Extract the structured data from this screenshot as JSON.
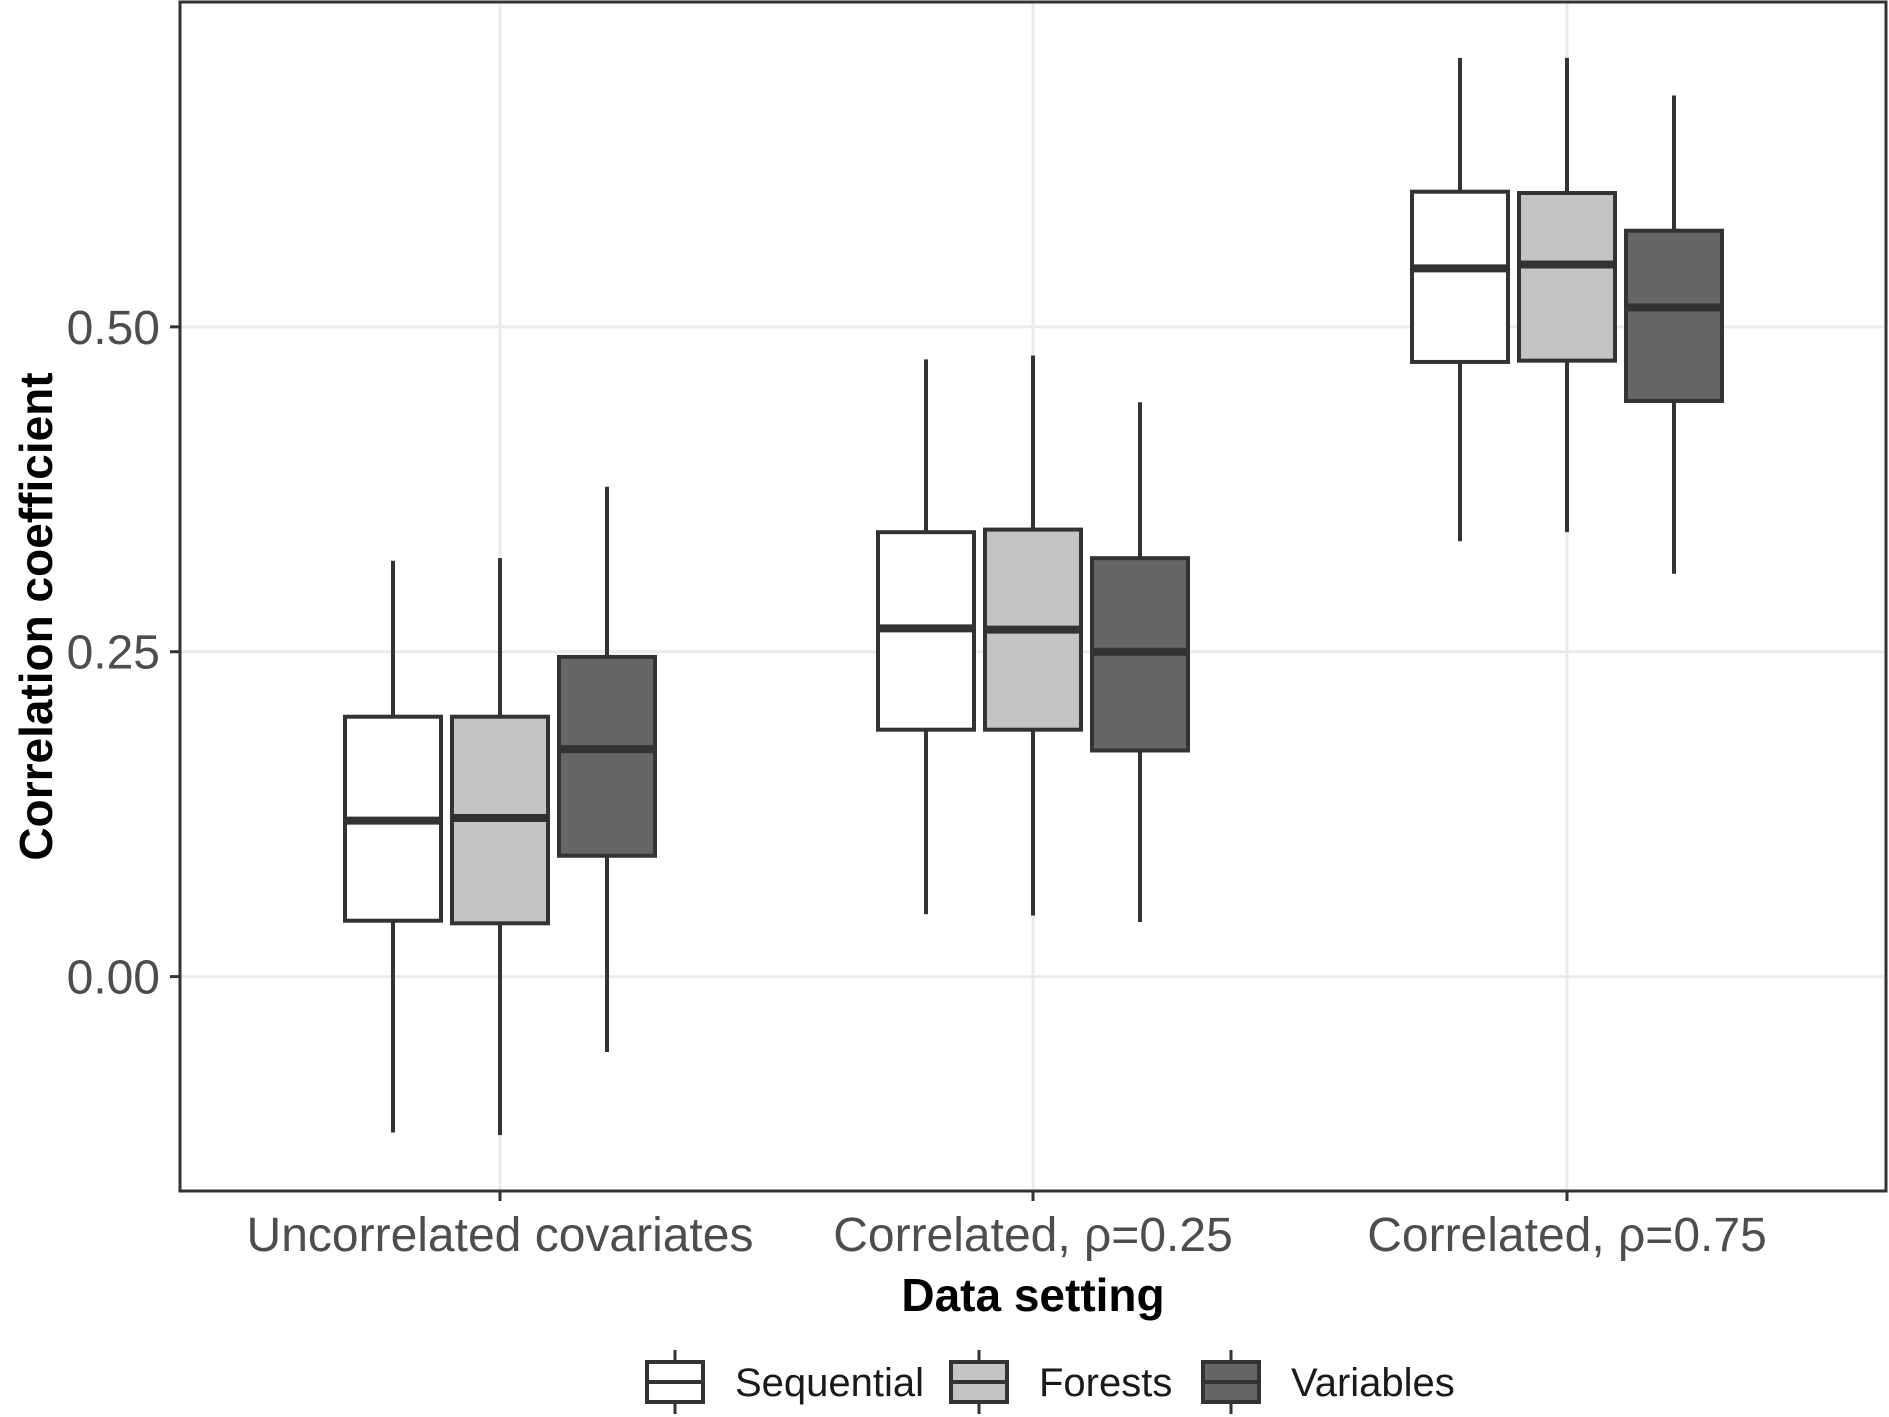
{
  "chart_data": {
    "type": "boxplot",
    "xlabel": "Data setting",
    "ylabel": "Correlation coefficient",
    "categories": [
      "Uncorrelated covariates",
      "Correlated, ρ=0.25",
      "Correlated, ρ=0.75"
    ],
    "ylim": [
      -0.165,
      0.75
    ],
    "yticks": [
      0.0,
      0.25,
      0.5
    ],
    "ytick_labels": [
      "0.00",
      "0.25",
      "0.50"
    ],
    "grid": true,
    "legend_position": "bottom",
    "series": [
      {
        "name": "Sequential",
        "color": "#ffffff",
        "boxes": [
          {
            "whisker_low": -0.12,
            "q1": 0.043,
            "median": 0.12,
            "q3": 0.2,
            "whisker_high": 0.32
          },
          {
            "whisker_low": 0.048,
            "q1": 0.19,
            "median": 0.268,
            "q3": 0.342,
            "whisker_high": 0.475
          },
          {
            "whisker_low": 0.335,
            "q1": 0.473,
            "median": 0.545,
            "q3": 0.604,
            "whisker_high": 0.707
          }
        ]
      },
      {
        "name": "Forests",
        "color": "#c4c4c4",
        "boxes": [
          {
            "whisker_low": -0.122,
            "q1": 0.041,
            "median": 0.122,
            "q3": 0.2,
            "whisker_high": 0.322
          },
          {
            "whisker_low": 0.047,
            "q1": 0.19,
            "median": 0.267,
            "q3": 0.344,
            "whisker_high": 0.478
          },
          {
            "whisker_low": 0.342,
            "q1": 0.474,
            "median": 0.548,
            "q3": 0.603,
            "whisker_high": 0.707
          }
        ]
      },
      {
        "name": "Variables",
        "color": "#666666",
        "boxes": [
          {
            "whisker_low": -0.058,
            "q1": 0.093,
            "median": 0.175,
            "q3": 0.246,
            "whisker_high": 0.377
          },
          {
            "whisker_low": 0.042,
            "q1": 0.174,
            "median": 0.25,
            "q3": 0.322,
            "whisker_high": 0.442
          },
          {
            "whisker_low": 0.31,
            "q1": 0.443,
            "median": 0.515,
            "q3": 0.574,
            "whisker_high": 0.678
          }
        ]
      }
    ]
  }
}
